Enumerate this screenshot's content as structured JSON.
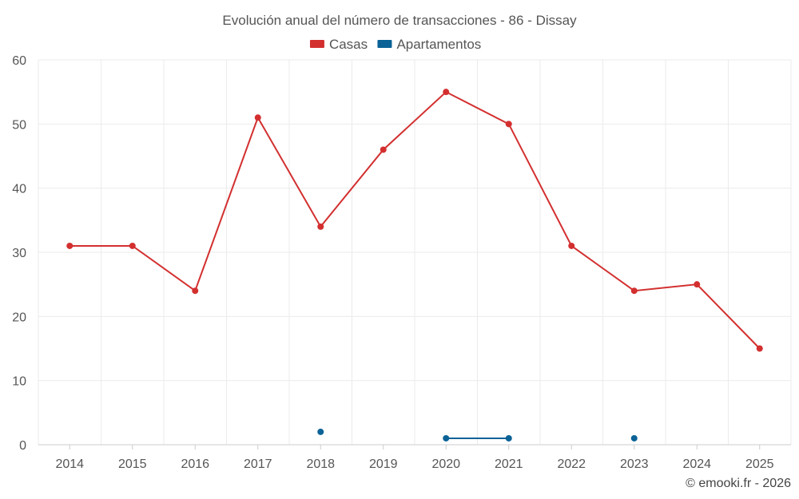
{
  "chart_data": {
    "type": "line",
    "title": "Evolución anual del número de transacciones - 86 - Dissay",
    "categories": [
      "2014",
      "2015",
      "2016",
      "2017",
      "2018",
      "2019",
      "2020",
      "2021",
      "2022",
      "2023",
      "2024",
      "2025"
    ],
    "series": [
      {
        "name": "Casas",
        "color": "#d32f2f",
        "values": [
          31,
          31,
          24,
          51,
          34,
          46,
          55,
          50,
          31,
          24,
          25,
          15
        ]
      },
      {
        "name": "Apartamentos",
        "color": "#0a6296",
        "values": [
          null,
          null,
          null,
          null,
          2,
          null,
          1,
          1,
          null,
          1,
          null,
          null
        ]
      }
    ],
    "ylim": [
      0,
      60
    ],
    "yticks": [
      0,
      10,
      20,
      30,
      40,
      50,
      60
    ],
    "grid": true,
    "legend": "top-center",
    "credit": "© emooki.fr - 2026"
  }
}
